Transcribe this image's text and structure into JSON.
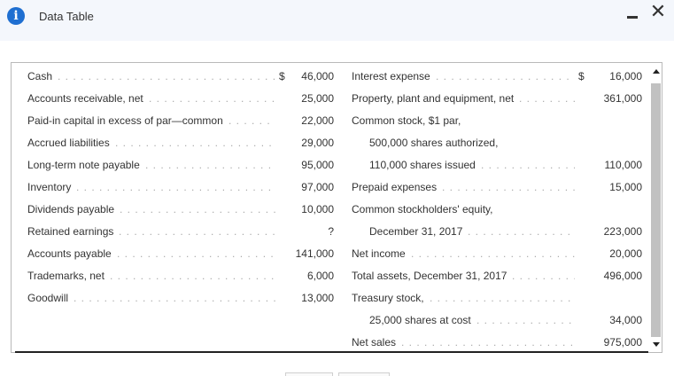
{
  "window": {
    "title": "Data Table",
    "info_icon": "info-icon",
    "minimize_icon": "minimize-icon",
    "close_icon": "close-icon",
    "close_glyph": "✕"
  },
  "left": [
    {
      "label": "Cash",
      "dollar": "$",
      "amount": "46,000"
    },
    {
      "label": "Accounts receivable, net",
      "dollar": "",
      "amount": "25,000"
    },
    {
      "label": "Paid-in capital in excess of par—common",
      "dollar": "",
      "amount": "22,000"
    },
    {
      "label": "Accrued liabilities",
      "dollar": "",
      "amount": "29,000"
    },
    {
      "label": "Long-term note payable",
      "dollar": "",
      "amount": "95,000"
    },
    {
      "label": "Inventory",
      "dollar": "",
      "amount": "97,000"
    },
    {
      "label": "Dividends payable",
      "dollar": "",
      "amount": "10,000"
    },
    {
      "label": "Retained earnings",
      "dollar": "",
      "amount": "?"
    },
    {
      "label": "Accounts payable",
      "dollar": "",
      "amount": "141,000"
    },
    {
      "label": "Trademarks, net",
      "dollar": "",
      "amount": "6,000"
    },
    {
      "label": "Goodwill",
      "dollar": "",
      "amount": "13,000"
    }
  ],
  "right": [
    {
      "label": "Interest expense",
      "dollar": "$",
      "amount": "16,000"
    },
    {
      "label": "Property, plant and equipment, net",
      "dollar": "",
      "amount": "361,000"
    },
    {
      "label": "Common stock, $1 par,",
      "dollar": "",
      "amount": ""
    },
    {
      "label": "500,000 shares authorized,",
      "dollar": "",
      "amount": ""
    },
    {
      "label": "110,000 shares issued",
      "dollar": "",
      "amount": "110,000"
    },
    {
      "label": "Prepaid expenses",
      "dollar": "",
      "amount": "15,000"
    },
    {
      "label": "Common stockholders' equity,",
      "dollar": "",
      "amount": ""
    },
    {
      "label": "December 31, 2017",
      "dollar": "",
      "amount": "223,000"
    },
    {
      "label": "Net income",
      "dollar": "",
      "amount": "20,000"
    },
    {
      "label": "Total assets, December 31, 2017",
      "dollar": "",
      "amount": "496,000"
    },
    {
      "label": "Treasury stock,",
      "dollar": "",
      "amount": ""
    },
    {
      "label": "25,000 shares at cost",
      "dollar": "",
      "amount": "34,000"
    },
    {
      "label": "Net sales",
      "dollar": "",
      "amount": "975,000"
    }
  ]
}
